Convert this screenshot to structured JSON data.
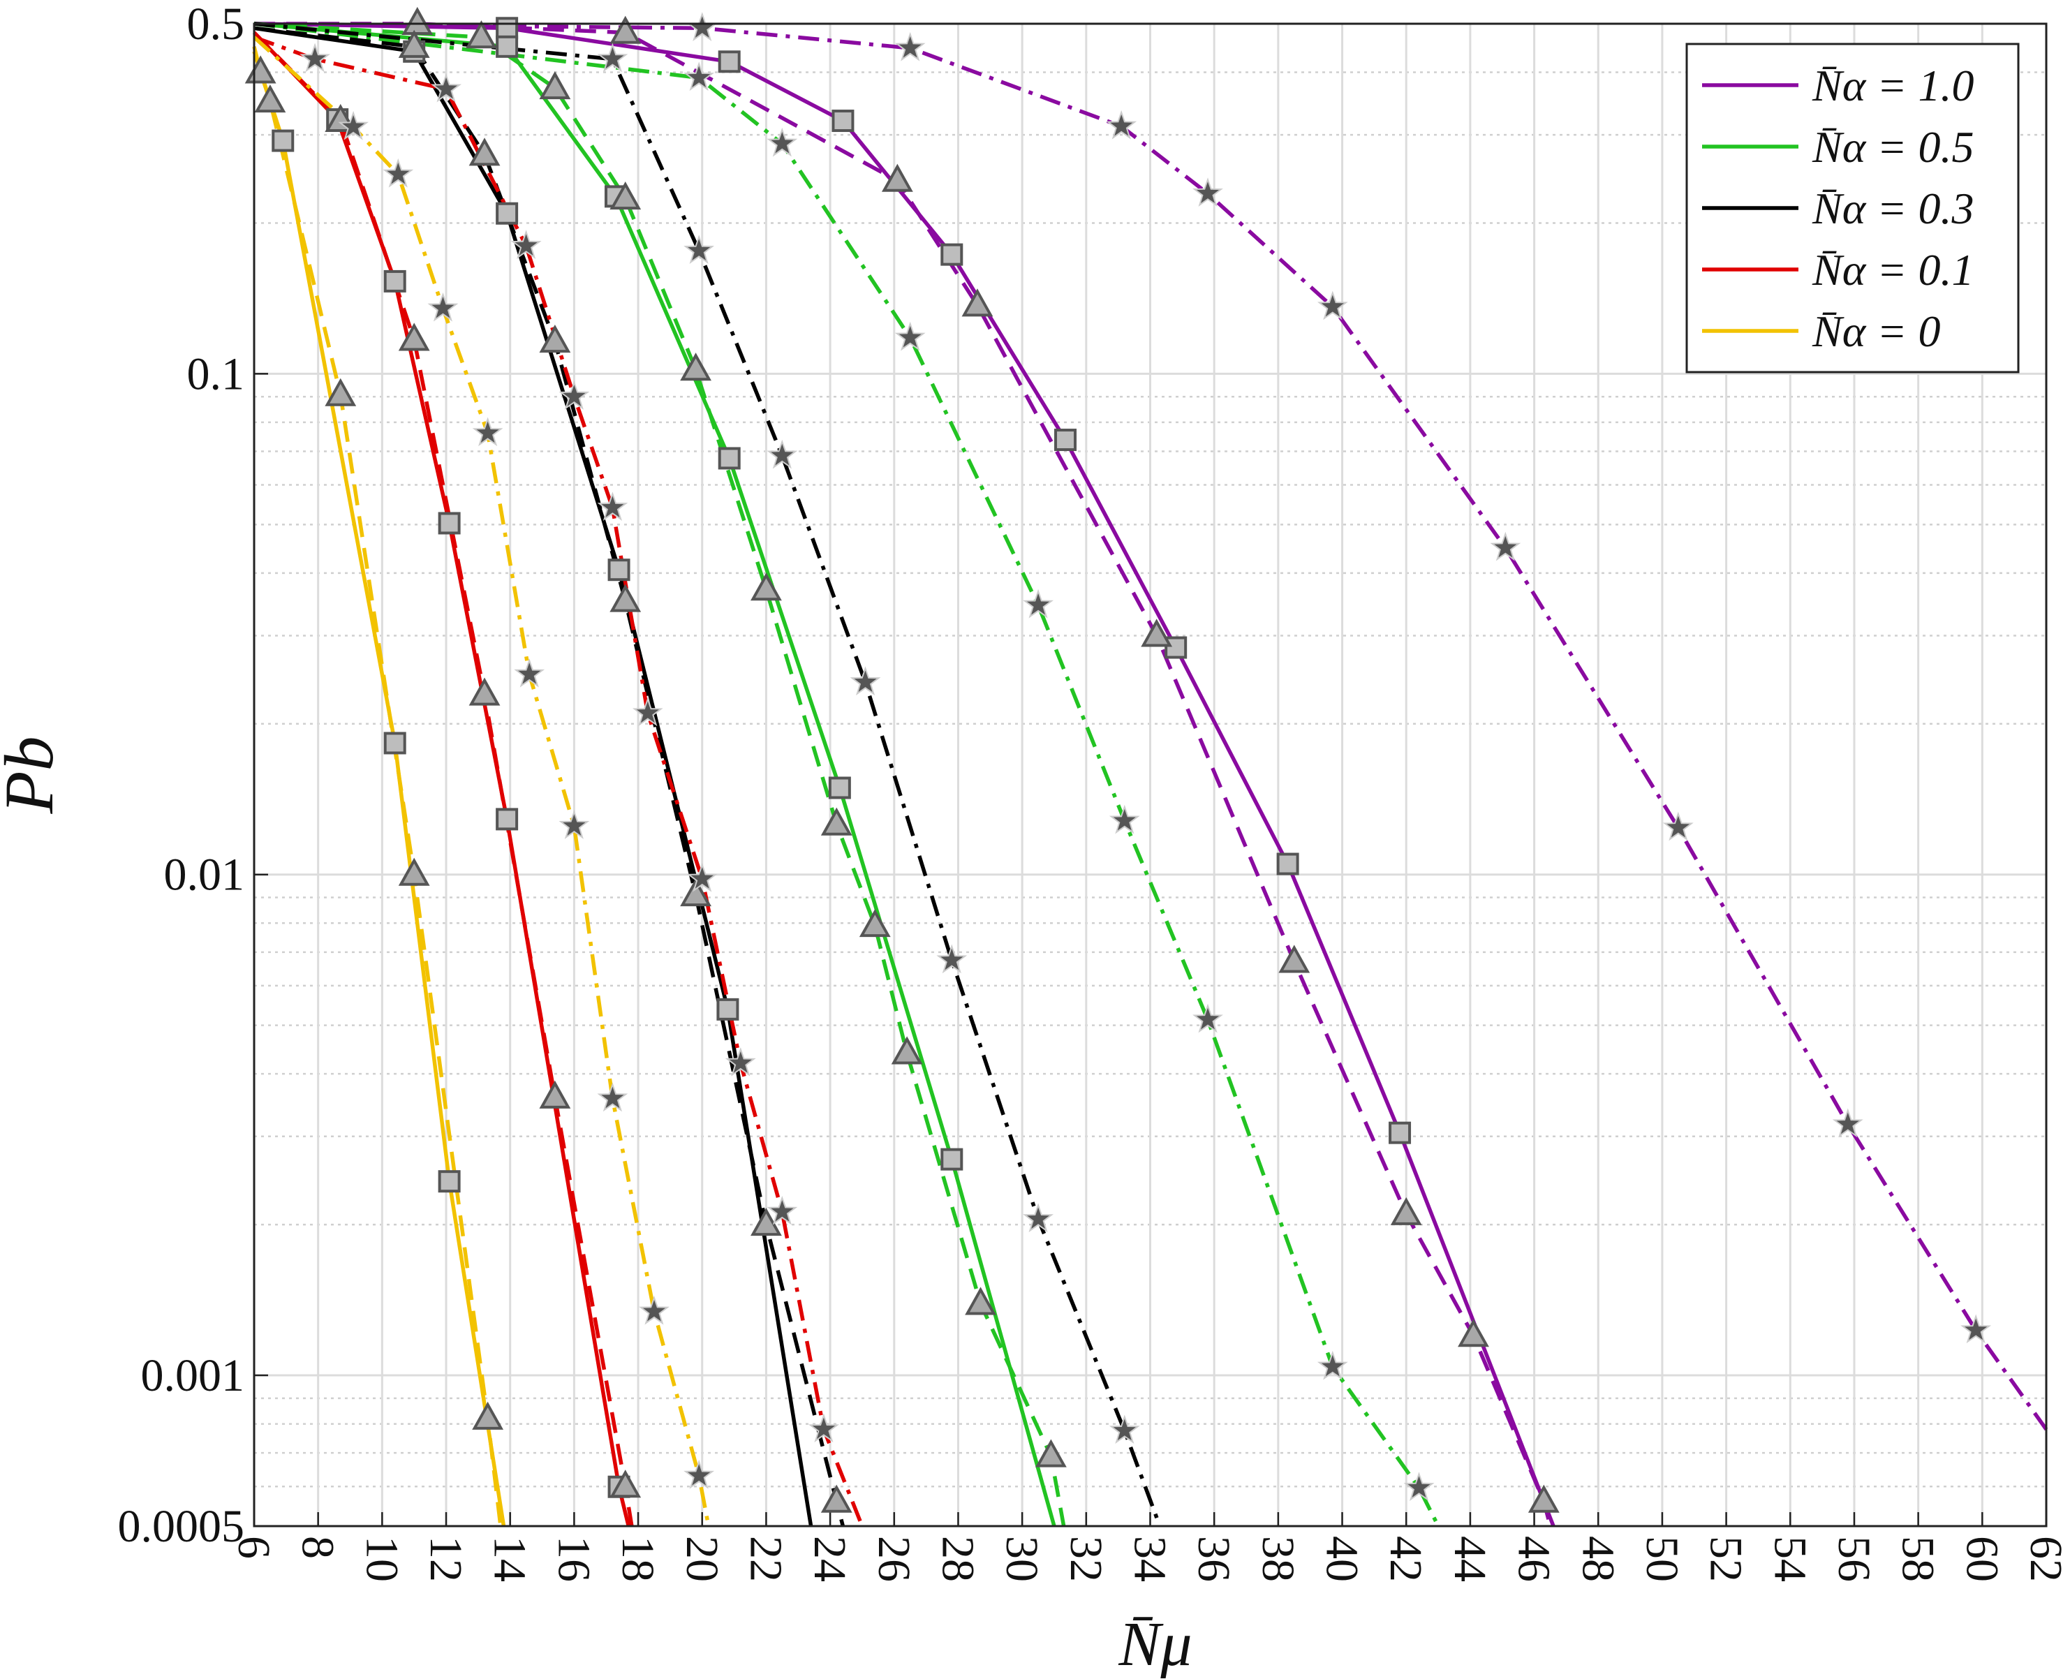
{
  "chart_data": {
    "type": "line",
    "xlabel": "N̄μ",
    "ylabel": "Pb",
    "xlim": [
      6,
      62
    ],
    "xticks": [
      6,
      8,
      10,
      12,
      14,
      16,
      18,
      20,
      22,
      24,
      26,
      28,
      30,
      32,
      34,
      36,
      38,
      40,
      42,
      44,
      46,
      48,
      50,
      52,
      54,
      56,
      58,
      60,
      62
    ],
    "ylim": [
      0.0005,
      0.5
    ],
    "yticks": [
      0.0005,
      0.001,
      0.01,
      0.1,
      0.5
    ],
    "yminorticks": [
      0.0006,
      0.0007,
      0.0008,
      0.0009,
      0.002,
      0.003,
      0.004,
      0.005,
      0.006,
      0.007,
      0.008,
      0.009,
      0.02,
      0.03,
      0.04,
      0.05,
      0.06,
      0.07,
      0.08,
      0.09,
      0.2,
      0.3,
      0.4
    ],
    "log_y": true,
    "grid": true,
    "legend": "upper right",
    "series": [
      {
        "name": "N̄α = 1.0",
        "color": "#8a0aa0",
        "linestyle": "solid",
        "marker": "square",
        "x": [
          6,
          13.9,
          20.85,
          24.4,
          27.8,
          31.35,
          34.8,
          38.3,
          41.8,
          46.6
        ],
        "values": [
          0.5,
          0.49,
          0.42,
          0.32,
          0.173,
          0.0738,
          0.0284,
          0.0105,
          0.00305,
          0.0005
        ]
      },
      {
        "color": "#8a0aa0",
        "linestyle": "dashed",
        "marker": "triangle",
        "x": [
          6,
          11.1,
          17.6,
          26.1,
          28.6,
          34.2,
          38.5,
          42.0,
          44.1,
          46.3,
          46.5
        ],
        "values": [
          0.5,
          0.5,
          0.48,
          0.243,
          0.137,
          0.03,
          0.0067,
          0.0021,
          0.0012,
          0.00056,
          0.0005
        ]
      },
      {
        "color": "#8a0aa0",
        "linestyle": "dashdot",
        "marker": "star",
        "x": [
          6,
          20,
          26.5,
          33.1,
          35.8,
          39.7,
          45.1,
          50.5,
          55.8,
          59.8,
          62
        ],
        "values": [
          0.5,
          0.49,
          0.447,
          0.312,
          0.229,
          0.136,
          0.0449,
          0.0124,
          0.00317,
          0.00123,
          0.00078
        ]
      },
      {
        "name": "N̄α = 0.5",
        "color": "#22c322",
        "linestyle": "solid",
        "marker": "square",
        "x": [
          6,
          13.9,
          17.3,
          20.85,
          24.3,
          27.8,
          31.0
        ],
        "values": [
          0.5,
          0.45,
          0.226,
          0.0678,
          0.0149,
          0.0027,
          0.0005
        ]
      },
      {
        "color": "#22c322",
        "linestyle": "dashed",
        "marker": "triangle",
        "x": [
          6,
          13.1,
          15.4,
          17.6,
          19.8,
          22.0,
          24.2,
          25.4,
          26.4,
          28.7,
          30.9,
          31.3
        ],
        "values": [
          0.5,
          0.47,
          0.372,
          0.224,
          0.102,
          0.0371,
          0.0126,
          0.0079,
          0.0044,
          0.00139,
          0.00069,
          0.0005
        ]
      },
      {
        "color": "#22c322",
        "linestyle": "dashdot",
        "marker": "star",
        "x": [
          6,
          19.9,
          22.5,
          26.5,
          30.5,
          33.2,
          35.8,
          39.7,
          42.4,
          43.0
        ],
        "values": [
          0.5,
          0.39,
          0.288,
          0.118,
          0.0345,
          0.0128,
          0.00513,
          0.00104,
          0.000596,
          0.0005
        ]
      },
      {
        "name": "N̄α = 0.3",
        "color": "#000000",
        "linestyle": "solid",
        "marker": "square",
        "x": [
          6,
          11,
          13.9,
          17.4,
          20.8,
          23.4
        ],
        "values": [
          0.49,
          0.44,
          0.209,
          0.0406,
          0.00538,
          0.0005
        ]
      },
      {
        "color": "#000000",
        "linestyle": "dashed",
        "marker": "triangle",
        "x": [
          6,
          11.0,
          13.2,
          15.4,
          17.6,
          19.8,
          22.0,
          24.2,
          24.4
        ],
        "values": [
          0.49,
          0.45,
          0.274,
          0.116,
          0.0352,
          0.0091,
          0.002,
          0.00056,
          0.0005
        ]
      },
      {
        "color": "#000000",
        "linestyle": "dashdot",
        "marker": "star",
        "x": [
          6,
          17.2,
          19.9,
          22.5,
          25.1,
          27.8,
          30.5,
          33.2,
          34.3
        ],
        "values": [
          0.5,
          0.425,
          0.176,
          0.0686,
          0.0242,
          0.00674,
          0.00205,
          0.000775,
          0.0005
        ]
      },
      {
        "name": "N̄α = 0.1",
        "color": "#e00000",
        "linestyle": "solid",
        "marker": "square",
        "x": [
          6,
          8.6,
          10.4,
          12.1,
          13.9,
          17.4,
          17.7
        ],
        "values": [
          0.48,
          0.322,
          0.153,
          0.0503,
          0.0129,
          0.000599,
          0.0005
        ]
      },
      {
        "color": "#e00000",
        "linestyle": "dashed",
        "marker": "triangle",
        "x": [
          6,
          8.7,
          11.0,
          13.2,
          15.4,
          17.6,
          17.8
        ],
        "values": [
          0.48,
          0.32,
          0.117,
          0.0229,
          0.00359,
          0.0006,
          0.0005
        ]
      },
      {
        "color": "#e00000",
        "linestyle": "dashdot",
        "marker": "star",
        "x": [
          6,
          7.9,
          12.0,
          14.5,
          16.0,
          17.2,
          18.3,
          20.0,
          21.2,
          22.5,
          23.8,
          25.0
        ],
        "values": [
          0.47,
          0.425,
          0.37,
          0.18,
          0.09,
          0.054,
          0.021,
          0.0098,
          0.0042,
          0.00212,
          0.00078,
          0.0005
        ]
      },
      {
        "name": "N̄α = 0",
        "color": "#f2c200",
        "linestyle": "solid",
        "marker": "square",
        "x": [
          6,
          6.9,
          10.4,
          12.1,
          13.8
        ],
        "values": [
          0.44,
          0.292,
          0.0183,
          0.00244,
          0.0005
        ]
      },
      {
        "color": "#f2c200",
        "linestyle": "dashed",
        "marker": "triangle",
        "x": [
          6,
          6.2,
          6.5,
          8.7,
          11.0,
          13.3,
          13.7
        ],
        "values": [
          0.45,
          0.4,
          0.35,
          0.0907,
          0.01,
          0.00082,
          0.0005
        ]
      },
      {
        "color": "#f2c200",
        "linestyle": "dashdot",
        "marker": "star",
        "x": [
          6,
          9.1,
          10.5,
          11.9,
          13.3,
          14.6,
          16.0,
          17.2,
          18.5,
          19.9,
          20.2
        ],
        "values": [
          0.47,
          0.311,
          0.25,
          0.135,
          0.0761,
          0.0251,
          0.0125,
          0.00357,
          0.00134,
          0.00063,
          0.0005
        ]
      }
    ]
  }
}
